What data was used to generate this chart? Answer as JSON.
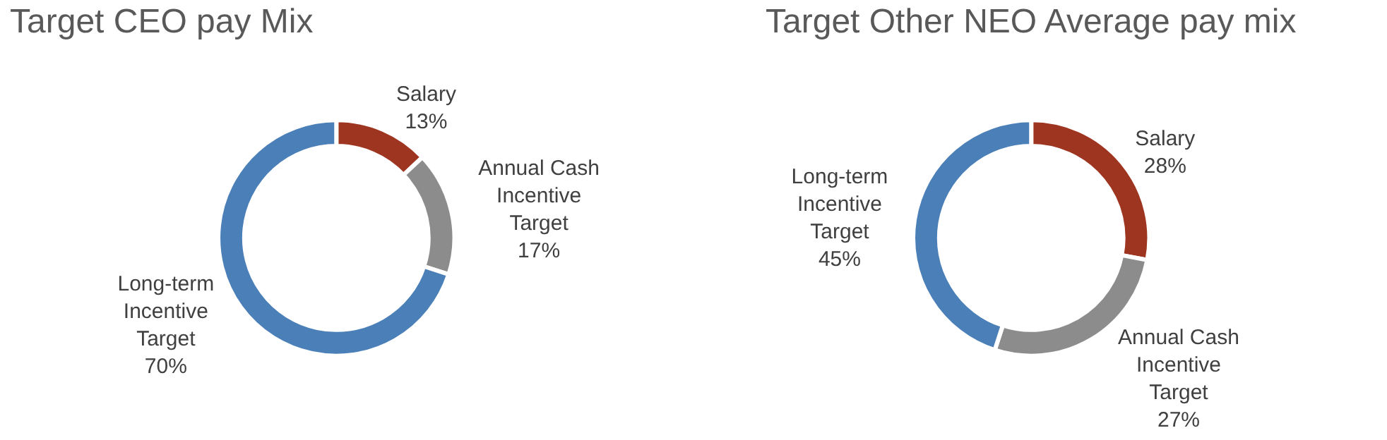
{
  "chart_data": [
    {
      "type": "donut",
      "title": "Target CEO pay Mix",
      "categories": [
        "Salary",
        "Annual Cash Incentive Target",
        "Long-term Incentive Target"
      ],
      "values": [
        13,
        17,
        70
      ],
      "value_labels": [
        "13%",
        "17%",
        "70%"
      ],
      "colors": [
        "#9e3520",
        "#8c8c8c",
        "#4a7fb8"
      ]
    },
    {
      "type": "donut",
      "title": "Target Other NEO Average pay mix",
      "categories": [
        "Salary",
        "Annual Cash Incentive Target",
        "Long-term Incentive Target"
      ],
      "values": [
        28,
        27,
        45
      ],
      "value_labels": [
        "28%",
        "27%",
        "45%"
      ],
      "colors": [
        "#9e3520",
        "#8c8c8c",
        "#4a7fb8"
      ]
    }
  ]
}
